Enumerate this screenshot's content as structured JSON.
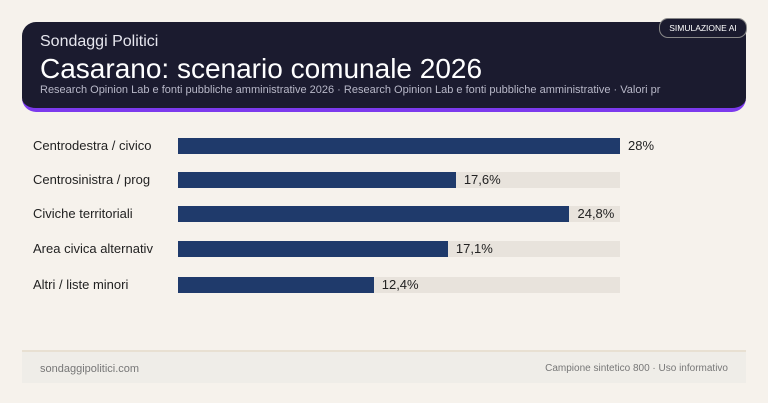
{
  "header": {
    "brand": "Sondaggi Politici",
    "title": "Casarano: scenario comunale 2026",
    "subtitle": "Research Opinion Lab e fonti pubbliche amministrative 2026 · Research Opinion Lab e fonti pubbliche amministrative · Valori pr",
    "badge": "SIMULAZIONE AI"
  },
  "chart_data": {
    "type": "bar",
    "orientation": "horizontal",
    "categories": [
      "Centrodestra / civico",
      "Centrosinistra / prog",
      "Civiche territoriali",
      "Area civica alternativ",
      "Altri / liste minori"
    ],
    "values": [
      28,
      17.6,
      24.8,
      17.1,
      12.4
    ],
    "value_labels": [
      "28%",
      "17,6%",
      "24,8%",
      "17,1%",
      "12,4%"
    ],
    "xlim": [
      0,
      28
    ],
    "grid": false,
    "bar_color": "#1f3a6b",
    "track_color": "#e8e3dc"
  },
  "footer": {
    "left": "sondaggipolitici.com",
    "right": "Campione sintetico 800 · Uso informativo"
  }
}
